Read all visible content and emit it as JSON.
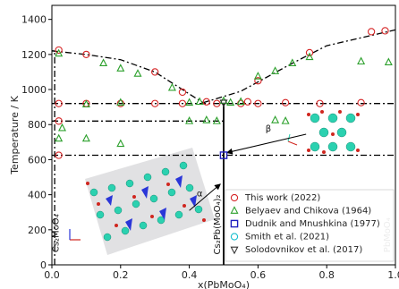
{
  "chart_data": {
    "type": "scatter",
    "xlabel": "x(PbMoO₄)",
    "ylabel": "Temperature / K",
    "xlim": [
      0,
      1.0
    ],
    "ylim": [
      0,
      1480
    ],
    "xticks": [
      0,
      0.2,
      0.4,
      0.6,
      0.8,
      1.0
    ],
    "xtick_labels": [
      "0.0",
      "0.2",
      "0.4",
      "0.6",
      "0.8",
      "1.0"
    ],
    "yticks": [
      0,
      200,
      400,
      600,
      800,
      1000,
      1200,
      1400
    ],
    "ytick_labels": [
      "0",
      "200",
      "400",
      "600",
      "800",
      "1000",
      "1200",
      "1400"
    ],
    "grid": false,
    "legend_position": "lower-right",
    "series": [
      {
        "name": "This work (2022)",
        "marker": "circle-open",
        "color": "#d62728",
        "points": [
          [
            0.02,
            1225
          ],
          [
            0.1,
            1200
          ],
          [
            0.3,
            1100
          ],
          [
            0.38,
            985
          ],
          [
            0.45,
            930
          ],
          [
            0.6,
            1050
          ],
          [
            0.75,
            1210
          ],
          [
            0.93,
            1330
          ],
          [
            0.97,
            1335
          ],
          [
            0.02,
            920
          ],
          [
            0.1,
            920
          ],
          [
            0.2,
            920
          ],
          [
            0.3,
            920
          ],
          [
            0.38,
            920
          ],
          [
            0.48,
            920
          ],
          [
            0.55,
            920
          ],
          [
            0.6,
            920
          ],
          [
            0.68,
            925
          ],
          [
            0.78,
            920
          ],
          [
            0.9,
            925
          ],
          [
            0.02,
            820
          ],
          [
            0.02,
            625
          ],
          [
            0.57,
            930
          ]
        ]
      },
      {
        "name": "Belyaev and Chikova (1964)",
        "marker": "triangle-up-open",
        "color": "#2ca02c",
        "points": [
          [
            0.02,
            1205
          ],
          [
            0.15,
            1150
          ],
          [
            0.2,
            1120
          ],
          [
            0.25,
            1090
          ],
          [
            0.35,
            1010
          ],
          [
            0.4,
            925
          ],
          [
            0.43,
            930
          ],
          [
            0.5,
            935
          ],
          [
            0.52,
            925
          ],
          [
            0.55,
            930
          ],
          [
            0.6,
            1075
          ],
          [
            0.65,
            1105
          ],
          [
            0.7,
            1150
          ],
          [
            0.75,
            1185
          ],
          [
            0.9,
            1160
          ],
          [
            0.98,
            1155
          ],
          [
            0.03,
            780
          ],
          [
            0.1,
            915
          ],
          [
            0.2,
            925
          ],
          [
            0.02,
            720
          ],
          [
            0.1,
            720
          ],
          [
            0.2,
            690
          ],
          [
            0.4,
            820
          ],
          [
            0.45,
            825
          ],
          [
            0.48,
            820
          ],
          [
            0.65,
            825
          ],
          [
            0.68,
            820
          ]
        ]
      },
      {
        "name": "Dudnik and Mnushkina (1977)",
        "marker": "square-open",
        "color": "#1f1fbf",
        "points": [
          [
            0.5,
            625
          ]
        ]
      },
      {
        "name": "Smith et al. (2021)",
        "marker": "circle-open",
        "color": "#17becf",
        "points": []
      },
      {
        "name": "Solodovnikov et al. (2017)",
        "marker": "triangle-down-open",
        "color": "#333333",
        "points": [
          [
            0.5,
            925
          ]
        ]
      }
    ],
    "lines": [
      {
        "style": "dash-dot",
        "points": [
          [
            0.0,
            1220
          ],
          [
            0.1,
            1200
          ],
          [
            0.2,
            1170
          ],
          [
            0.3,
            1100
          ],
          [
            0.38,
            1000
          ],
          [
            0.44,
            925
          ]
        ]
      },
      {
        "style": "dash-dot",
        "points": [
          [
            0.44,
            925
          ],
          [
            0.55,
            990
          ],
          [
            0.7,
            1150
          ],
          [
            0.8,
            1250
          ],
          [
            1.0,
            1340
          ]
        ]
      },
      {
        "style": "dash-dot",
        "points": [
          [
            0.0,
            920
          ],
          [
            1.0,
            920
          ]
        ]
      },
      {
        "style": "dash-dot",
        "points": [
          [
            0.0,
            820
          ],
          [
            0.5,
            820
          ]
        ]
      },
      {
        "style": "dash-dot",
        "points": [
          [
            0.0,
            625
          ],
          [
            1.0,
            625
          ]
        ]
      },
      {
        "style": "solid",
        "points": [
          [
            0.5,
            0
          ],
          [
            0.5,
            925
          ]
        ]
      },
      {
        "style": "dash-dot",
        "points": [
          [
            0.008,
            0
          ],
          [
            0.008,
            1220
          ]
        ]
      },
      {
        "style": "dash-dot",
        "points": [
          [
            0.008,
            1220
          ],
          [
            0.0,
            1220
          ]
        ]
      }
    ],
    "annotations": [
      {
        "text": "β",
        "x": 0.63,
        "y": 760
      },
      {
        "text": "α",
        "x": 0.43,
        "y": 390
      },
      {
        "text": "Cs₂MoO₄",
        "x": 0.02,
        "y": 180,
        "rotation": -90
      },
      {
        "text": "Cs₂Pb(MoO₄)₂",
        "x": 0.49,
        "y": 230,
        "rotation": -90
      },
      {
        "text": "PbMoO₄",
        "x": 0.985,
        "y": 170,
        "rotation": -90
      }
    ]
  }
}
